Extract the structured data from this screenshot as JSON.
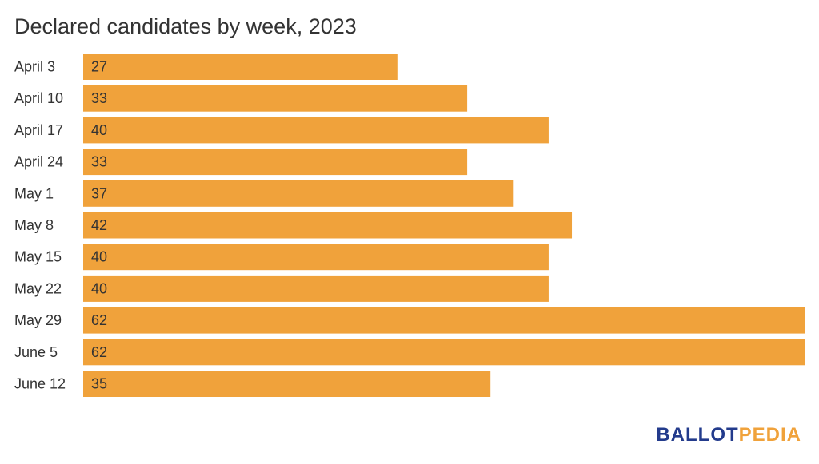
{
  "chart_data": {
    "type": "bar",
    "orientation": "horizontal",
    "title": "Declared candidates by week, 2023",
    "categories": [
      "April 3",
      "April 10",
      "April 17",
      "April 24",
      "May 1",
      "May 8",
      "May 15",
      "May 22",
      "May 29",
      "June 5",
      "June 12"
    ],
    "values": [
      27,
      33,
      40,
      33,
      37,
      42,
      40,
      40,
      62,
      62,
      35
    ],
    "xlabel": "",
    "ylabel": "",
    "xlim": [
      0,
      62
    ],
    "grid": false,
    "data_labels": "inside-start",
    "bar_color": "#f0a23b"
  },
  "logo": {
    "part_a": "BALLOT",
    "part_b": "PEDIA"
  },
  "colors": {
    "bar": "#f0a23b",
    "text": "#333333",
    "logo_primary": "#233b8c",
    "logo_accent": "#f0a23b"
  }
}
